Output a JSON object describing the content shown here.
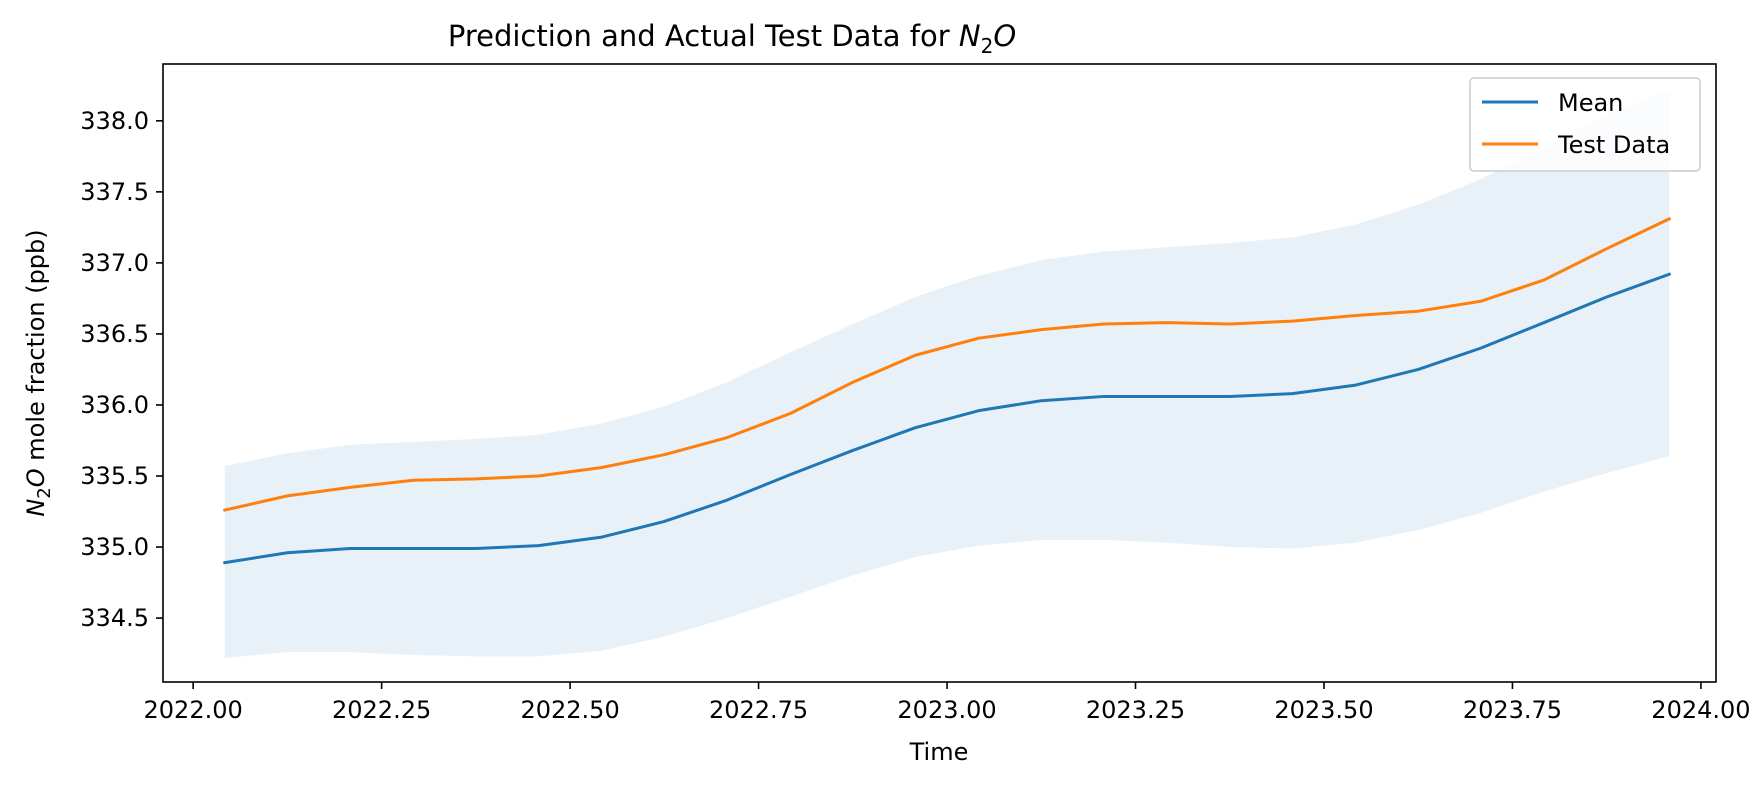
{
  "chart_data": {
    "type": "line",
    "title_prefix": "Prediction and Actual Test Data for ",
    "title_chem": {
      "N": "N",
      "sub": "2",
      "O": "O"
    },
    "xlabel": "Time",
    "ylabel_chem": {
      "N": "N",
      "sub": "2",
      "O": "O"
    },
    "ylabel_suffix": " mole fraction (ppb)",
    "xlim": [
      2021.96,
      2024.02
    ],
    "ylim": [
      334.05,
      338.4
    ],
    "x_ticks": [
      2022.0,
      2022.25,
      2022.5,
      2022.75,
      2023.0,
      2023.25,
      2023.5,
      2023.75,
      2024.0
    ],
    "x_tick_labels": [
      "2022.00",
      "2022.25",
      "2022.50",
      "2022.75",
      "2023.00",
      "2023.25",
      "2023.50",
      "2023.75",
      "2024.00"
    ],
    "y_ticks": [
      334.5,
      335.0,
      335.5,
      336.0,
      336.5,
      337.0,
      337.5,
      338.0
    ],
    "y_tick_labels": [
      "334.5",
      "335.0",
      "335.5",
      "336.0",
      "336.5",
      "337.0",
      "337.5",
      "338.0"
    ],
    "grid": false,
    "legend_position": "top-right",
    "x": [
      2022.042,
      2022.125,
      2022.208,
      2022.292,
      2022.375,
      2022.458,
      2022.542,
      2022.625,
      2022.708,
      2022.792,
      2022.875,
      2022.958,
      2023.042,
      2023.125,
      2023.208,
      2023.292,
      2023.375,
      2023.458,
      2023.542,
      2023.625,
      2023.708,
      2023.792,
      2023.875,
      2023.958
    ],
    "series": [
      {
        "name": "Mean",
        "color": "#1f77b4",
        "values": [
          334.89,
          334.96,
          334.99,
          334.99,
          334.99,
          335.01,
          335.07,
          335.18,
          335.33,
          335.51,
          335.68,
          335.84,
          335.96,
          336.03,
          336.06,
          336.06,
          336.06,
          336.08,
          336.14,
          336.25,
          336.4,
          336.58,
          336.76,
          336.92
        ]
      },
      {
        "name": "Test Data",
        "color": "#ff7f0e",
        "values": [
          335.26,
          335.36,
          335.42,
          335.47,
          335.48,
          335.5,
          335.56,
          335.65,
          335.77,
          335.94,
          336.16,
          336.35,
          336.47,
          336.53,
          336.57,
          336.58,
          336.57,
          336.59,
          336.63,
          336.66,
          336.73,
          336.88,
          337.1,
          337.31
        ]
      }
    ],
    "interval": {
      "color": "#1f77b4",
      "opacity": 0.1,
      "upper": [
        335.57,
        335.66,
        335.72,
        335.74,
        335.76,
        335.79,
        335.87,
        335.99,
        336.16,
        336.37,
        336.57,
        336.76,
        336.91,
        337.02,
        337.08,
        337.11,
        337.14,
        337.18,
        337.27,
        337.41,
        337.59,
        337.81,
        338.05,
        338.21
      ],
      "lower": [
        334.22,
        334.26,
        334.26,
        334.24,
        334.23,
        334.23,
        334.27,
        334.37,
        334.5,
        334.65,
        334.8,
        334.93,
        335.01,
        335.05,
        335.05,
        335.03,
        335.0,
        334.99,
        335.03,
        335.12,
        335.24,
        335.39,
        335.52,
        335.64
      ]
    }
  }
}
